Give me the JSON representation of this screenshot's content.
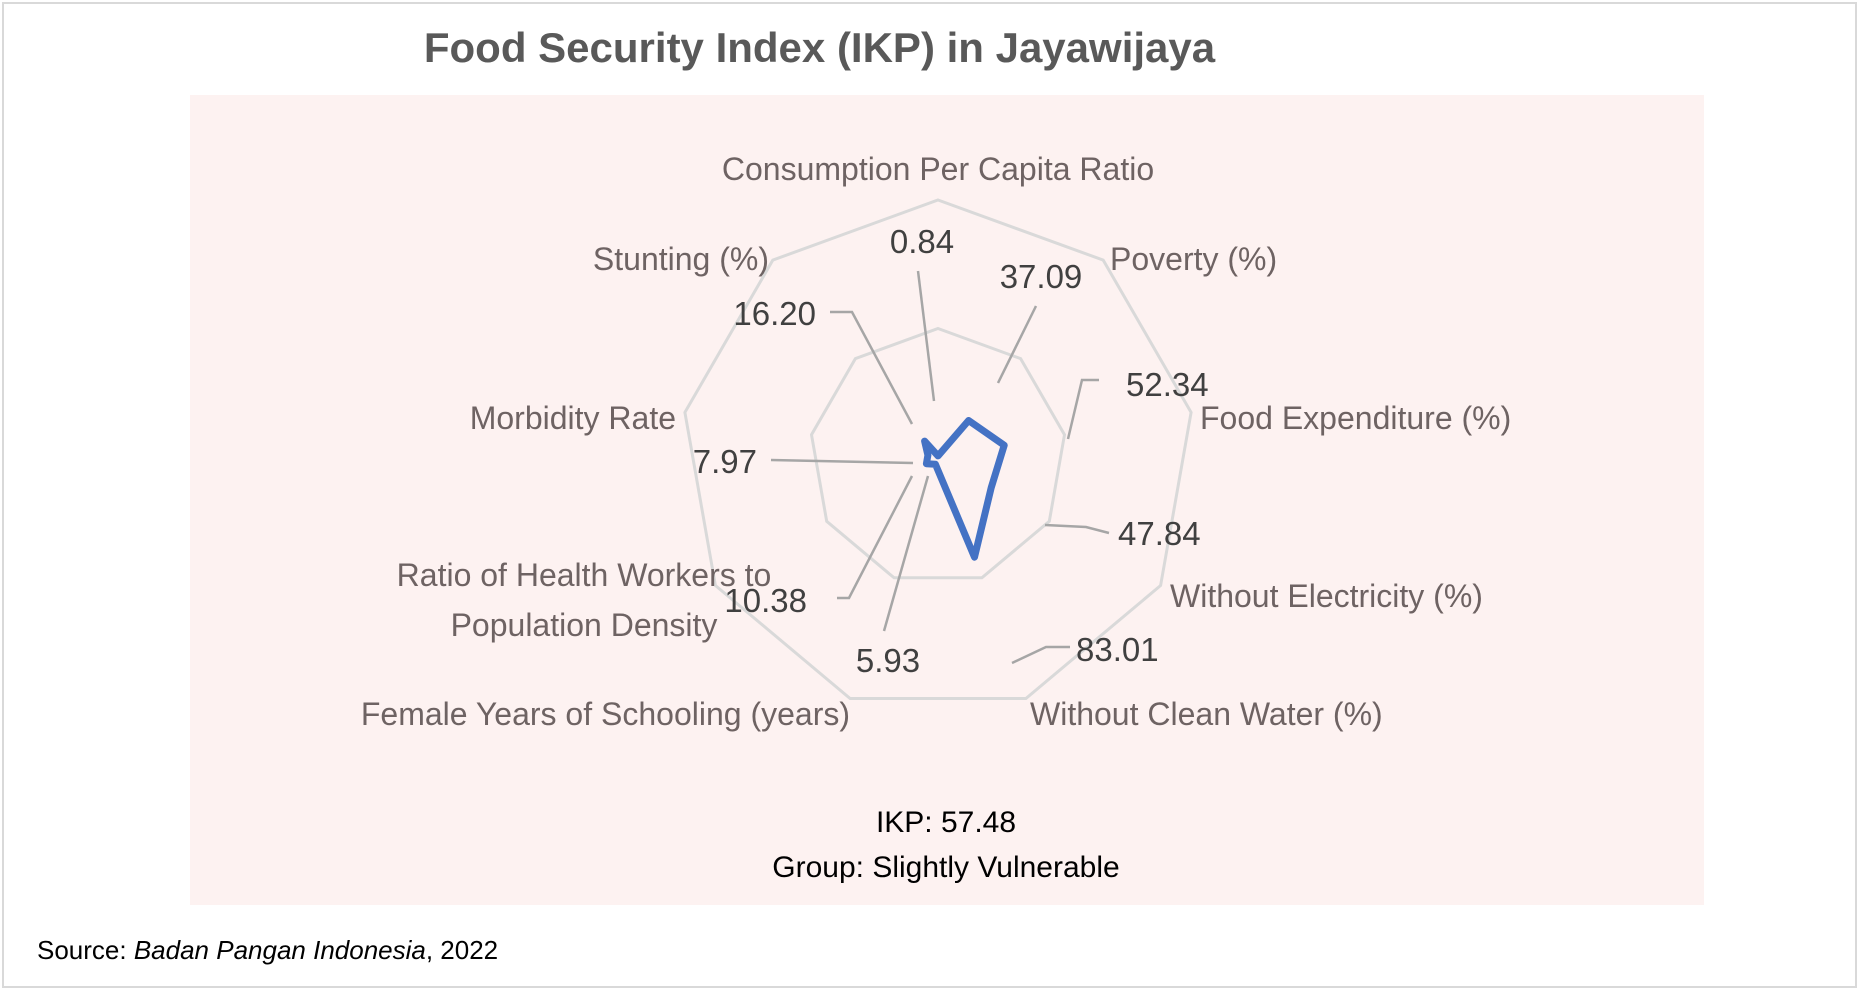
{
  "chart_data": {
    "type": "radar",
    "title": "Food Security Index (IKP) in Jayawijaya",
    "axes": [
      {
        "label": [
          "Consumption Per Capita Ratio"
        ],
        "value": 0.84,
        "value_text": "0.84"
      },
      {
        "label": [
          "Poverty (%)"
        ],
        "value": 37.09,
        "value_text": "37.09"
      },
      {
        "label": [
          "Food Expenditure (%)"
        ],
        "value": 52.34,
        "value_text": "52.34"
      },
      {
        "label": [
          "Without Electricity (%)"
        ],
        "value": 47.84,
        "value_text": "47.84"
      },
      {
        "label": [
          "Without Clean Water (%)"
        ],
        "value": 83.01,
        "value_text": "83.01"
      },
      {
        "label": [
          "Female Years of Schooling (years)"
        ],
        "value": 5.93,
        "value_text": "5.93"
      },
      {
        "label": [
          "Ratio of Health Workers to",
          "Population Density"
        ],
        "value": 10.38,
        "value_text": "10.38"
      },
      {
        "label": [
          "Morbidity Rate"
        ],
        "value": 7.97,
        "value_text": "7.97"
      },
      {
        "label": [
          "Stunting (%)"
        ],
        "value": 16.2,
        "value_text": "16.20"
      }
    ],
    "rmax": 200,
    "gridlines": [
      0,
      100,
      200
    ],
    "series_color": "#4472c4",
    "grid_color": "#d9d9d9",
    "leader_color": "#a6a6a6"
  },
  "summary": {
    "ikp": "IKP: 57.48",
    "group": "Group: Slightly Vulnerable"
  },
  "source": {
    "prefix": "Source: ",
    "italic": "Badan Pangan Indonesia",
    "suffix": ", 2022"
  },
  "colors": {
    "plot_background": "#fdf2f1",
    "title": "#595959"
  }
}
